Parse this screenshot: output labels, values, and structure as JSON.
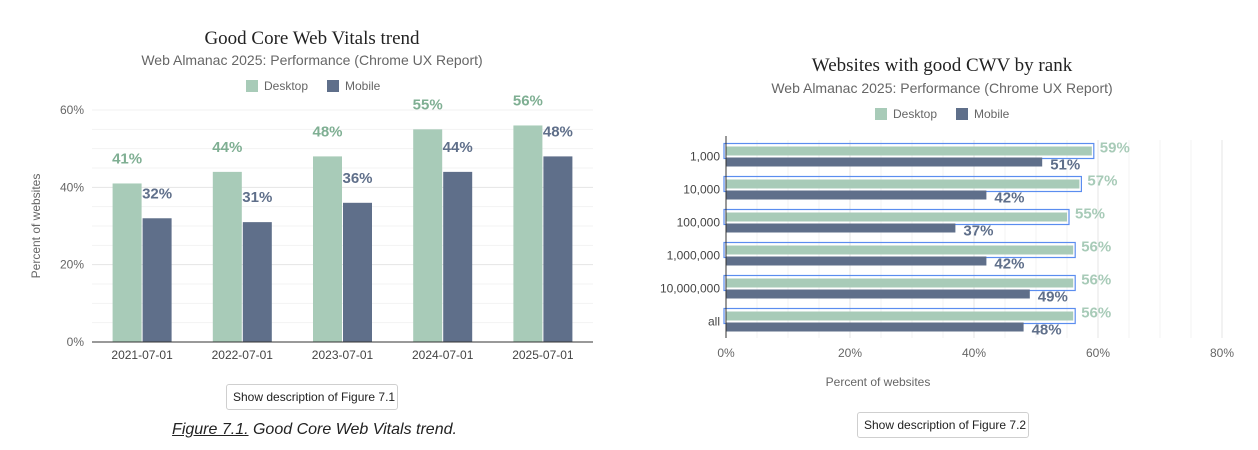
{
  "figure1": {
    "description_button": "Show description of Figure 7.1",
    "caption_link": "Figure 7.1.",
    "caption_text": " Good Core Web Vitals trend."
  },
  "figure2": {
    "description_button": "Show description of Figure 7.2"
  },
  "colors": {
    "desktop": "#a8cbb8",
    "mobile": "#5f6f8a",
    "desktop_label": "#7faf93",
    "mobile_label": "#5f6f8a",
    "highlight": "#5b8def"
  },
  "chart_data": [
    {
      "type": "bar",
      "title": "Good Core Web Vitals trend",
      "subtitle": "Web Almanac 2025: Performance (Chrome UX Report)",
      "xlabel": "",
      "ylabel": "Percent of websites",
      "categories": [
        "2021-07-01",
        "2022-07-01",
        "2023-07-01",
        "2024-07-01",
        "2025-07-01"
      ],
      "series": [
        {
          "name": "Desktop",
          "values": [
            41,
            44,
            48,
            55,
            56
          ],
          "labels": [
            "41%",
            "44%",
            "48%",
            "55%",
            "56%"
          ]
        },
        {
          "name": "Mobile",
          "values": [
            32,
            31,
            36,
            44,
            48
          ],
          "labels": [
            "32%",
            "31%",
            "36%",
            "44%",
            "48%"
          ]
        }
      ],
      "ylim": [
        0,
        60
      ],
      "yticks": [
        "0%",
        "20%",
        "40%",
        "60%"
      ],
      "legend": "top",
      "grid": true
    },
    {
      "type": "bar",
      "orientation": "horizontal",
      "title": "Websites with good CWV by rank",
      "subtitle": "Web Almanac 2025: Performance (Chrome UX Report)",
      "xlabel": "Percent of websites",
      "ylabel": "",
      "categories": [
        "1,000",
        "10,000",
        "100,000",
        "1,000,000",
        "10,000,000",
        "all"
      ],
      "series": [
        {
          "name": "Desktop",
          "values": [
            59,
            57,
            55,
            56,
            56,
            56
          ],
          "labels": [
            "59%",
            "57%",
            "55%",
            "56%",
            "56%",
            "56%"
          ]
        },
        {
          "name": "Mobile",
          "values": [
            51,
            42,
            37,
            42,
            49,
            48
          ],
          "labels": [
            "51%",
            "42%",
            "37%",
            "42%",
            "49%",
            "48%"
          ]
        }
      ],
      "xlim": [
        0,
        80
      ],
      "xticks": [
        "0%",
        "20%",
        "40%",
        "60%",
        "80%"
      ],
      "legend": "top",
      "grid": true
    }
  ]
}
